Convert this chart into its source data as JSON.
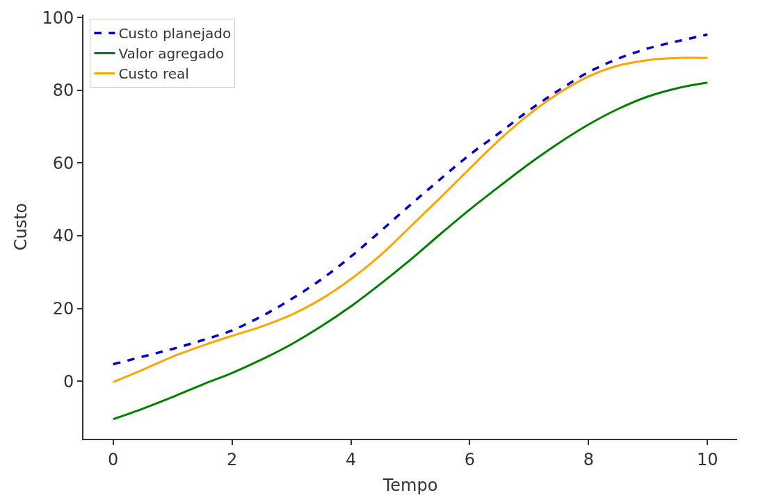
{
  "chart_data": {
    "type": "line",
    "xlabel": "Tempo",
    "ylabel": "Custo",
    "x": [
      0,
      0.5,
      1,
      1.5,
      2,
      2.5,
      3,
      3.5,
      4,
      4.5,
      5,
      5.5,
      6,
      6.5,
      7,
      7.5,
      8,
      8.5,
      9,
      9.5,
      10
    ],
    "series": [
      {
        "name": "Custo planejado",
        "color": "#0000cc",
        "line_style": "dashed",
        "values": [
          4.7,
          6.8,
          8.9,
          11.3,
          14,
          17.9,
          22.6,
          28,
          34.3,
          41.3,
          48.5,
          55.5,
          62.3,
          68.3,
          74.5,
          80,
          85,
          88.7,
          91.5,
          93.5,
          95.3
        ]
      },
      {
        "name": "Valor agregado",
        "color": "#008000",
        "line_style": "solid",
        "values": [
          -10.4,
          -7.5,
          -4.3,
          -0.9,
          2.3,
          6,
          10.2,
          15.1,
          20.6,
          26.8,
          33.4,
          40.4,
          47.2,
          53.6,
          59.8,
          65.5,
          70.6,
          74.9,
          78.3,
          80.6,
          82.1
        ]
      },
      {
        "name": "Custo real",
        "color": "#ffa500",
        "line_style": "solid",
        "values": [
          -0.2,
          3.2,
          6.8,
          9.8,
          12.5,
          15.1,
          18.3,
          22.6,
          28.1,
          34.7,
          42.5,
          50.4,
          58.5,
          66.4,
          73.4,
          79.2,
          83.8,
          86.8,
          88.3,
          88.9,
          88.9
        ]
      }
    ],
    "xlim": [
      -0.5,
      10.5
    ],
    "ylim": [
      -15.8,
      100.8
    ],
    "xticks": [
      0,
      2,
      4,
      6,
      8,
      10
    ],
    "yticks": [
      0,
      20,
      40,
      60,
      80,
      100
    ],
    "legend": "top left",
    "marker": "none"
  }
}
